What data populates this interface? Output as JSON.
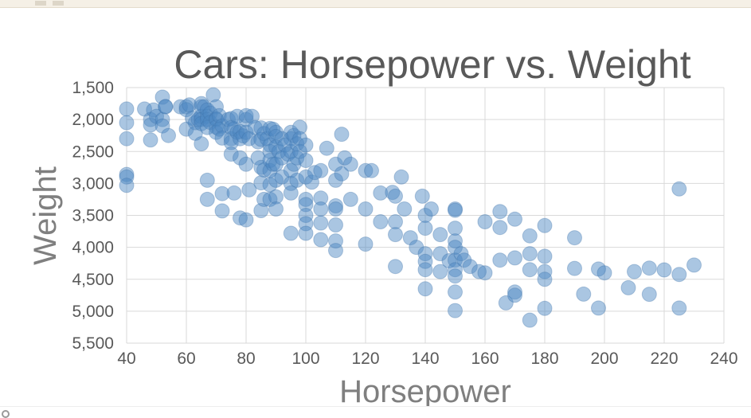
{
  "window": {
    "top_strip": "",
    "bottom_strip": ""
  },
  "chart_data": {
    "type": "scatter",
    "title": "Cars: Horsepower vs. Weight",
    "xlabel": "Horsepower",
    "ylabel": "Weight",
    "xlim": [
      40,
      240
    ],
    "ylim": [
      1500,
      5500
    ],
    "y_reversed": true,
    "x_ticks": [
      40,
      60,
      80,
      100,
      120,
      140,
      160,
      180,
      200,
      220,
      240
    ],
    "y_ticks": [
      1500,
      2000,
      2500,
      3000,
      3500,
      4000,
      4500,
      5000,
      5500
    ],
    "x_tick_labels": [
      "40",
      "60",
      "80",
      "100",
      "120",
      "140",
      "160",
      "180",
      "200",
      "220",
      "240"
    ],
    "y_tick_labels": [
      "1,500",
      "2,000",
      "2,500",
      "3,000",
      "3,500",
      "4,000",
      "4,500",
      "5,000",
      "5,500"
    ],
    "grid": true,
    "legend": "none",
    "point_color": "#4e87c2",
    "points": [
      [
        40,
        1835
      ],
      [
        40,
        2050
      ],
      [
        40,
        2300
      ],
      [
        40,
        2860
      ],
      [
        40,
        2900
      ],
      [
        40,
        3030
      ],
      [
        46,
        1835
      ],
      [
        48,
        2000
      ],
      [
        48,
        2085
      ],
      [
        48,
        2320
      ],
      [
        49,
        1850
      ],
      [
        50,
        1950
      ],
      [
        52,
        1650
      ],
      [
        52,
        2000
      ],
      [
        52,
        2100
      ],
      [
        53,
        1800
      ],
      [
        53,
        1795
      ],
      [
        54,
        2250
      ],
      [
        58,
        1800
      ],
      [
        60,
        1800
      ],
      [
        60,
        1845
      ],
      [
        60,
        2150
      ],
      [
        61,
        1770
      ],
      [
        62,
        1980
      ],
      [
        63,
        2050
      ],
      [
        63,
        2215
      ],
      [
        64,
        2000
      ],
      [
        65,
        1750
      ],
      [
        65,
        1800
      ],
      [
        65,
        1950
      ],
      [
        65,
        2000
      ],
      [
        65,
        2065
      ],
      [
        65,
        2380
      ],
      [
        66,
        1800
      ],
      [
        67,
        1850
      ],
      [
        67,
        1950
      ],
      [
        67,
        2000
      ],
      [
        67,
        2125
      ],
      [
        67,
        2950
      ],
      [
        67,
        3250
      ],
      [
        68,
        1900
      ],
      [
        68,
        2045
      ],
      [
        69,
        1613
      ],
      [
        70,
        1800
      ],
      [
        70,
        1990
      ],
      [
        70,
        2000
      ],
      [
        70,
        2120
      ],
      [
        70,
        2200
      ],
      [
        71,
        1940
      ],
      [
        71,
        2150
      ],
      [
        72,
        2100
      ],
      [
        72,
        2290
      ],
      [
        72,
        3160
      ],
      [
        72,
        3430
      ],
      [
        74,
        2000
      ],
      [
        75,
        1985
      ],
      [
        75,
        2125
      ],
      [
        75,
        2300
      ],
      [
        75,
        2360
      ],
      [
        75,
        2540
      ],
      [
        76,
        2145
      ],
      [
        76,
        3150
      ],
      [
        77,
        1950
      ],
      [
        77,
        2200
      ],
      [
        78,
        2188
      ],
      [
        78,
        2300
      ],
      [
        78,
        2600
      ],
      [
        78,
        3540
      ],
      [
        79,
        2255
      ],
      [
        80,
        2000
      ],
      [
        80,
        1940
      ],
      [
        80,
        2200
      ],
      [
        80,
        2700
      ],
      [
        80,
        3570
      ],
      [
        81,
        2300
      ],
      [
        81,
        3100
      ],
      [
        82,
        1950
      ],
      [
        83,
        2125
      ],
      [
        84,
        2350
      ],
      [
        84,
        2600
      ],
      [
        85,
        2130
      ],
      [
        85,
        2310
      ],
      [
        85,
        2750
      ],
      [
        85,
        2990
      ],
      [
        85,
        3425
      ],
      [
        86,
        2220
      ],
      [
        86,
        2790
      ],
      [
        86,
        3250
      ],
      [
        87,
        2300
      ],
      [
        88,
        2140
      ],
      [
        88,
        2400
      ],
      [
        88,
        2500
      ],
      [
        88,
        2640
      ],
      [
        88,
        2800
      ],
      [
        88,
        3020
      ],
      [
        88,
        3250
      ],
      [
        89,
        2150
      ],
      [
        89,
        2700
      ],
      [
        90,
        2200
      ],
      [
        90,
        2265
      ],
      [
        90,
        2430
      ],
      [
        90,
        2700
      ],
      [
        90,
        2950
      ],
      [
        90,
        3210
      ],
      [
        90,
        3400
      ],
      [
        91,
        2500
      ],
      [
        92,
        2300
      ],
      [
        92,
        2600
      ],
      [
        92,
        2900
      ],
      [
        93,
        2400
      ],
      [
        94,
        2540
      ],
      [
        95,
        2200
      ],
      [
        95,
        2300
      ],
      [
        95,
        2500
      ],
      [
        95,
        2800
      ],
      [
        95,
        3000
      ],
      [
        95,
        3150
      ],
      [
        95,
        3780
      ],
      [
        96,
        2250
      ],
      [
        96,
        2700
      ],
      [
        97,
        2380
      ],
      [
        97,
        2600
      ],
      [
        97,
        2950
      ],
      [
        98,
        2120
      ],
      [
        98,
        2300
      ],
      [
        98,
        2500
      ],
      [
        100,
        2400
      ],
      [
        100,
        2640
      ],
      [
        100,
        2900
      ],
      [
        100,
        3250
      ],
      [
        100,
        3330
      ],
      [
        100,
        3500
      ],
      [
        100,
        3630
      ],
      [
        100,
        3780
      ],
      [
        102,
        2980
      ],
      [
        103,
        2830
      ],
      [
        105,
        2800
      ],
      [
        105,
        3230
      ],
      [
        105,
        3400
      ],
      [
        105,
        3620
      ],
      [
        105,
        3880
      ],
      [
        107,
        2450
      ],
      [
        110,
        2700
      ],
      [
        110,
        2950
      ],
      [
        110,
        3350
      ],
      [
        110,
        3400
      ],
      [
        110,
        3650
      ],
      [
        110,
        3900
      ],
      [
        110,
        4050
      ],
      [
        112,
        2230
      ],
      [
        112,
        2850
      ],
      [
        113,
        2600
      ],
      [
        115,
        2700
      ],
      [
        115,
        3250
      ],
      [
        120,
        2800
      ],
      [
        120,
        3400
      ],
      [
        120,
        3950
      ],
      [
        122,
        2800
      ],
      [
        125,
        3150
      ],
      [
        125,
        3600
      ],
      [
        129,
        3140
      ],
      [
        130,
        3200
      ],
      [
        130,
        3600
      ],
      [
        130,
        3800
      ],
      [
        130,
        4300
      ],
      [
        132,
        2900
      ],
      [
        133,
        3400
      ],
      [
        135,
        3850
      ],
      [
        137,
        4000
      ],
      [
        139,
        3200
      ],
      [
        140,
        3500
      ],
      [
        140,
        3700
      ],
      [
        140,
        4100
      ],
      [
        140,
        4220
      ],
      [
        140,
        4350
      ],
      [
        140,
        4650
      ],
      [
        142,
        3400
      ],
      [
        145,
        3800
      ],
      [
        145,
        4100
      ],
      [
        145,
        4380
      ],
      [
        148,
        4210
      ],
      [
        150,
        3400
      ],
      [
        150,
        3420
      ],
      [
        150,
        3700
      ],
      [
        150,
        3900
      ],
      [
        150,
        4000
      ],
      [
        150,
        4200
      ],
      [
        150,
        4350
      ],
      [
        150,
        4450
      ],
      [
        150,
        4700
      ],
      [
        150,
        4990
      ],
      [
        152,
        4100
      ],
      [
        153,
        4200
      ],
      [
        155,
        4300
      ],
      [
        158,
        4380
      ],
      [
        160,
        3600
      ],
      [
        160,
        4400
      ],
      [
        165,
        3440
      ],
      [
        165,
        3690
      ],
      [
        165,
        4200
      ],
      [
        167,
        4870
      ],
      [
        170,
        3560
      ],
      [
        170,
        4165
      ],
      [
        170,
        4700
      ],
      [
        170,
        4750
      ],
      [
        175,
        3820
      ],
      [
        175,
        4100
      ],
      [
        175,
        4350
      ],
      [
        175,
        5140
      ],
      [
        180,
        3660
      ],
      [
        180,
        4140
      ],
      [
        180,
        4380
      ],
      [
        180,
        4500
      ],
      [
        180,
        4955
      ],
      [
        190,
        3850
      ],
      [
        190,
        4330
      ],
      [
        193,
        4732
      ],
      [
        198,
        4340
      ],
      [
        198,
        4950
      ],
      [
        200,
        4400
      ],
      [
        208,
        4633
      ],
      [
        210,
        4380
      ],
      [
        215,
        4325
      ],
      [
        215,
        4735
      ],
      [
        220,
        4354
      ],
      [
        225,
        3086
      ],
      [
        225,
        4425
      ],
      [
        225,
        4950
      ],
      [
        230,
        4278
      ]
    ]
  }
}
